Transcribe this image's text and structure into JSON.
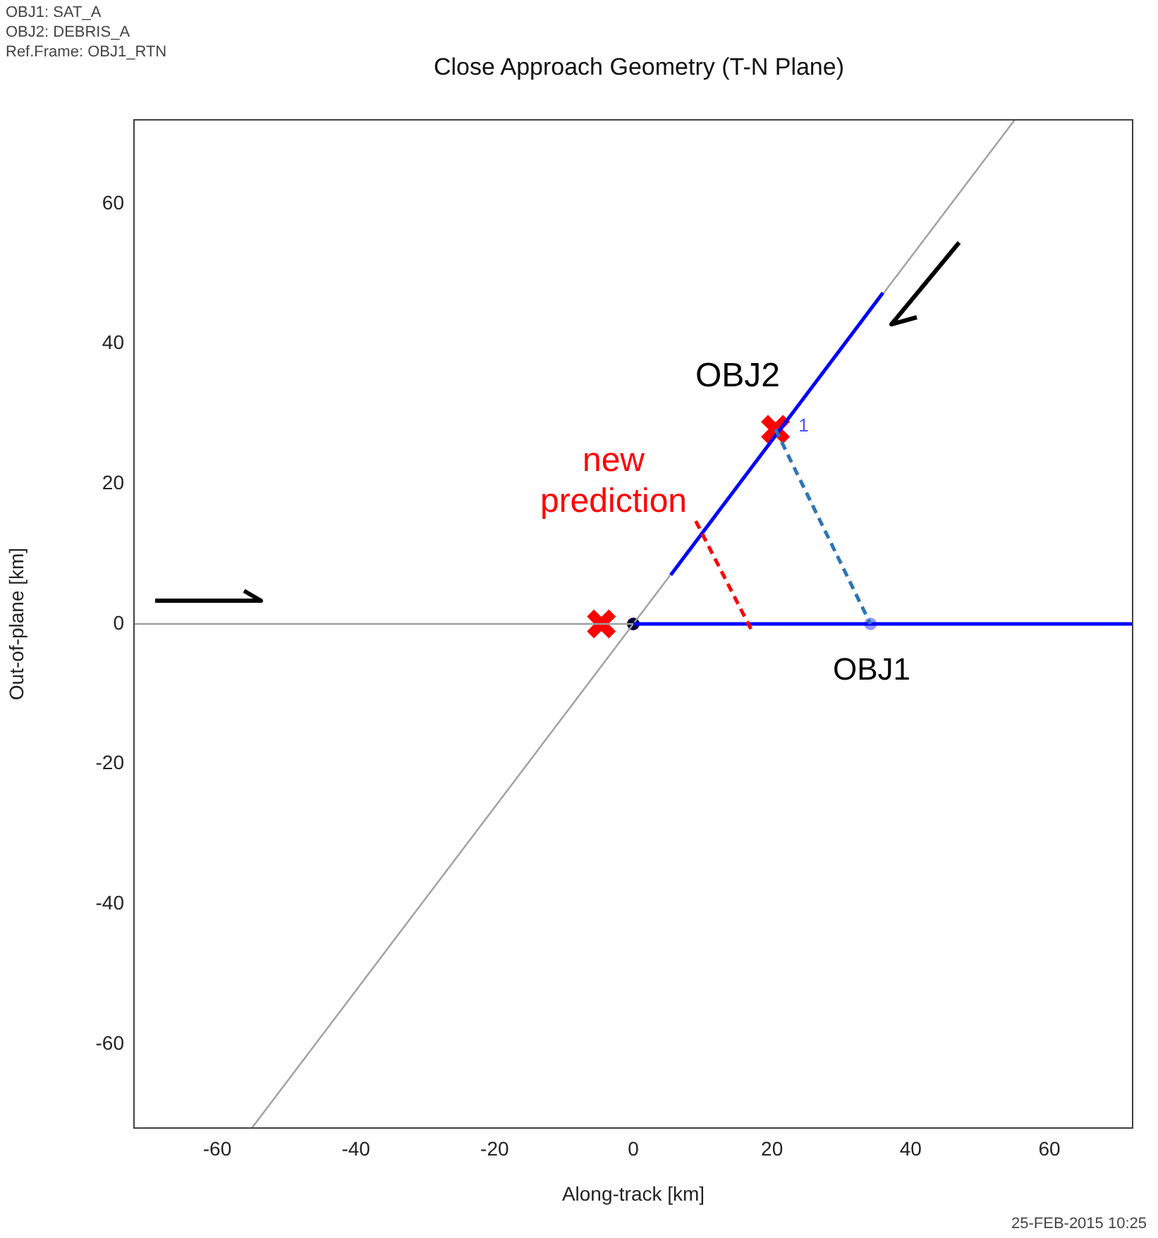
{
  "chart_data": {
    "type": "line",
    "title": "Close Approach Geometry (T-N Plane)",
    "xlabel": "Along-track [km]",
    "ylabel": "Out-of-plane [km]",
    "xlim": [
      -72,
      72
    ],
    "ylim": [
      -72,
      72
    ],
    "xticks": [
      -60,
      -40,
      -20,
      0,
      20,
      40,
      60
    ],
    "yticks": [
      -60,
      -40,
      -20,
      0,
      20,
      40,
      60
    ],
    "grid": false,
    "legend": false,
    "series": [
      {
        "color": "#a0a0a0",
        "x": [
          -55,
          55
        ],
        "values": [
          -72,
          72
        ]
      },
      {
        "color": "#a0a0a0",
        "x": [
          -72,
          0
        ],
        "values": [
          0,
          0
        ]
      },
      {
        "color": "#0000ff",
        "x": [
          5.4,
          36
        ],
        "values": [
          7,
          47.3
        ]
      },
      {
        "color": "#0000ff",
        "x": [
          0,
          72
        ],
        "values": [
          0,
          0
        ]
      },
      {
        "color": "#ff0000",
        "line_style": "dashed",
        "x": [
          9,
          17
        ],
        "values": [
          14.7,
          -0.8
        ]
      },
      {
        "color": "#2e75b6",
        "line_style": "dashed",
        "x": [
          20.5,
          34.2
        ],
        "values": [
          27.8,
          0
        ]
      },
      {
        "type": "scatter",
        "color": "#9999ff",
        "marker": "circle",
        "x": [
          34.2
        ],
        "values": [
          0
        ]
      },
      {
        "type": "scatter",
        "color": "#000033",
        "marker": "circle",
        "x": [
          0
        ],
        "values": [
          0
        ]
      },
      {
        "type": "scatter",
        "color": "#ff0000",
        "marker": "cross",
        "x": [
          -4.6,
          20.5
        ],
        "values": [
          0,
          27.8
        ]
      }
    ],
    "annotations": [
      "OBJ1: SAT_A",
      "OBJ2: DEBRIS_A",
      "Ref.Frame: OBJ1_RTN",
      "25-FEB-2015 10:25",
      "OBJ2",
      "new prediction",
      "OBJ1",
      {
        "text": "1",
        "x": 20.5,
        "y": 27.8
      }
    ]
  }
}
